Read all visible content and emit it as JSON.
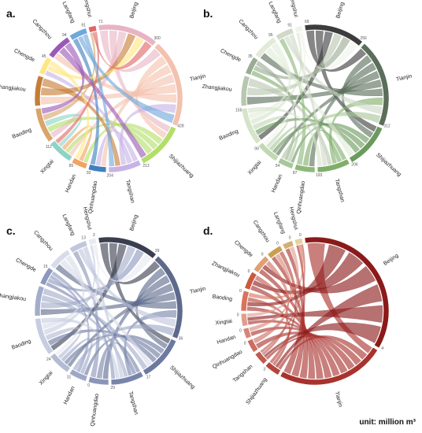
{
  "unit_label": "unit: million m³",
  "panels": [
    {
      "label": "a.",
      "palette": [
        "#e8b4c4",
        "#f3c1ad",
        "#b3de69",
        "#c7b3e6",
        "#3f7fbf",
        "#f2a35f",
        "#8dd3c7",
        "#d9a56b",
        "#c77d35",
        "#ffe680",
        "#9b59b6",
        "#6fa8dc",
        "#e06666",
        "#76c893",
        "#ffcc66"
      ],
      "nodes": [
        {
          "name": "Beijing",
          "tick": "71",
          "tick2": "300",
          "start": -8,
          "end": 40
        },
        {
          "name": "Tianjin",
          "tick": "",
          "tick2": "428",
          "start": 42,
          "end": 112
        },
        {
          "name": "Shijiazhuang",
          "tick": "",
          "tick2": "213",
          "start": 114,
          "end": 152
        },
        {
          "name": "Tangshan",
          "tick": "",
          "tick2": "204",
          "start": 154,
          "end": 180
        },
        {
          "name": "Qinhuangdao",
          "tick": "",
          "tick2": "92",
          "start": 182,
          "end": 196
        },
        {
          "name": "Handan",
          "tick": "",
          "tick2": "85",
          "start": 198,
          "end": 210
        },
        {
          "name": "Xingtai",
          "tick": "",
          "tick2": "112",
          "start": 212,
          "end": 232
        },
        {
          "name": "Baoding",
          "tick": "",
          "tick2": "",
          "start": 234,
          "end": 262
        },
        {
          "name": "Zhangjiakou",
          "tick": "",
          "tick2": "",
          "start": 264,
          "end": 288
        },
        {
          "name": "Chengde",
          "tick": "",
          "tick2": "45",
          "start": 290,
          "end": 304
        },
        {
          "name": "Cangzhou",
          "tick": "",
          "tick2": "94",
          "start": 306,
          "end": 326
        },
        {
          "name": "Langfang",
          "tick": "",
          "tick2": "91",
          "start": 328,
          "end": 342
        },
        {
          "name": "Hengshui",
          "tick": "",
          "tick2": "",
          "start": 344,
          "end": 350
        }
      ],
      "flows": [
        [
          0,
          1
        ],
        [
          0,
          2
        ],
        [
          0,
          7
        ],
        [
          1,
          2
        ],
        [
          1,
          4
        ],
        [
          1,
          6
        ],
        [
          1,
          8
        ],
        [
          1,
          10
        ],
        [
          2,
          5
        ],
        [
          2,
          6
        ],
        [
          2,
          7
        ],
        [
          3,
          4
        ],
        [
          3,
          9
        ],
        [
          3,
          1
        ],
        [
          4,
          11
        ],
        [
          5,
          6
        ],
        [
          6,
          7
        ],
        [
          7,
          12
        ],
        [
          8,
          0
        ],
        [
          8,
          3
        ],
        [
          9,
          0
        ],
        [
          9,
          5
        ],
        [
          10,
          2
        ],
        [
          10,
          7
        ],
        [
          11,
          1
        ],
        [
          11,
          3
        ],
        [
          12,
          0
        ],
        [
          12,
          6
        ]
      ]
    },
    {
      "label": "b.",
      "palette": [
        "#3c3c3c",
        "#5a6e5a",
        "#6b9a5e",
        "#7fae6a",
        "#8db87a",
        "#a8c79a",
        "#c2d8b4",
        "#d5e4c9",
        "#b8c7b0",
        "#9aab93",
        "#e1ebd8",
        "#cfd9c7",
        "#f0f4ec"
      ],
      "nodes": [
        {
          "name": "Beijing",
          "tick": "69",
          "tick2": "256",
          "start": -8,
          "end": 40
        },
        {
          "name": "Tianjin",
          "tick": "",
          "tick2": "312",
          "start": 42,
          "end": 112
        },
        {
          "name": "Shijiazhuang",
          "tick": "",
          "tick2": "206",
          "start": 114,
          "end": 150
        },
        {
          "name": "Tangshan",
          "tick": "",
          "tick2": "193",
          "start": 152,
          "end": 178
        },
        {
          "name": "Qinhuangdao",
          "tick": "",
          "tick2": "87",
          "start": 180,
          "end": 196
        },
        {
          "name": "Handan",
          "tick": "",
          "tick2": "54",
          "start": 198,
          "end": 210
        },
        {
          "name": "Xingtai",
          "tick": "",
          "tick2": "99",
          "start": 212,
          "end": 230
        },
        {
          "name": "Baoding",
          "tick": "",
          "tick2": "155",
          "start": 232,
          "end": 262
        },
        {
          "name": "Zhangjiakou",
          "tick": "",
          "tick2": "",
          "start": 264,
          "end": 288
        },
        {
          "name": "Chengde",
          "tick": "",
          "tick2": "35",
          "start": 290,
          "end": 304
        },
        {
          "name": "Cangzhou",
          "tick": "",
          "tick2": "95",
          "start": 306,
          "end": 326
        },
        {
          "name": "Langfang",
          "tick": "",
          "tick2": "91",
          "start": 328,
          "end": 342
        },
        {
          "name": "Hengshui",
          "tick": "",
          "tick2": "",
          "start": 344,
          "end": 350
        }
      ],
      "flows": [
        [
          0,
          1
        ],
        [
          0,
          2
        ],
        [
          0,
          7
        ],
        [
          1,
          2
        ],
        [
          1,
          4
        ],
        [
          1,
          6
        ],
        [
          1,
          8
        ],
        [
          1,
          10
        ],
        [
          2,
          5
        ],
        [
          2,
          6
        ],
        [
          2,
          7
        ],
        [
          3,
          4
        ],
        [
          3,
          9
        ],
        [
          3,
          1
        ],
        [
          4,
          11
        ],
        [
          5,
          6
        ],
        [
          6,
          7
        ],
        [
          7,
          12
        ],
        [
          8,
          0
        ],
        [
          8,
          3
        ],
        [
          9,
          0
        ],
        [
          9,
          5
        ],
        [
          10,
          2
        ],
        [
          10,
          7
        ],
        [
          11,
          1
        ],
        [
          11,
          3
        ],
        [
          12,
          0
        ],
        [
          12,
          6
        ],
        [
          7,
          3
        ],
        [
          5,
          1
        ]
      ]
    },
    {
      "label": "c.",
      "palette": [
        "#3a3f4f",
        "#5d6a8c",
        "#6c79a0",
        "#7885ab",
        "#8a95b8",
        "#9ea8c6",
        "#b3bbd3",
        "#c6cde0",
        "#a3adca",
        "#8c98bd",
        "#d8dcea",
        "#c0c7dd",
        "#e8eaf2"
      ],
      "nodes": [
        {
          "name": "Beijing",
          "tick": "",
          "tick2": "29",
          "start": -8,
          "end": 40
        },
        {
          "name": "Tianjin",
          "tick": "",
          "tick2": "36",
          "start": 42,
          "end": 112
        },
        {
          "name": "Shijiazhuang",
          "tick": "",
          "tick2": "17",
          "start": 114,
          "end": 150
        },
        {
          "name": "Tangshan",
          "tick": "",
          "tick2": "29",
          "start": 152,
          "end": 178
        },
        {
          "name": "Qinhuangdao",
          "tick": "",
          "tick2": "0",
          "start": 180,
          "end": 196
        },
        {
          "name": "Handan",
          "tick": "",
          "tick2": "31",
          "start": 198,
          "end": 212
        },
        {
          "name": "Xingtai",
          "tick": "",
          "tick2": "24",
          "start": 214,
          "end": 232
        },
        {
          "name": "Baoding",
          "tick": "",
          "tick2": "",
          "start": 234,
          "end": 264
        },
        {
          "name": "Zhangjiakou",
          "tick": "",
          "tick2": "",
          "start": 266,
          "end": 290
        },
        {
          "name": "Chengde",
          "tick": "",
          "tick2": "15",
          "start": 292,
          "end": 306
        },
        {
          "name": "Cangzhou",
          "tick": "",
          "tick2": "",
          "start": 308,
          "end": 326
        },
        {
          "name": "Langfang",
          "tick": "",
          "tick2": "13",
          "start": 328,
          "end": 342
        },
        {
          "name": "Hengshui",
          "tick": "",
          "tick2": "3",
          "start": 344,
          "end": 350
        }
      ],
      "flows": [
        [
          0,
          1
        ],
        [
          0,
          2
        ],
        [
          0,
          7
        ],
        [
          1,
          2
        ],
        [
          1,
          4
        ],
        [
          1,
          6
        ],
        [
          1,
          8
        ],
        [
          1,
          10
        ],
        [
          2,
          5
        ],
        [
          2,
          6
        ],
        [
          2,
          7
        ],
        [
          3,
          4
        ],
        [
          3,
          9
        ],
        [
          3,
          1
        ],
        [
          4,
          11
        ],
        [
          5,
          6
        ],
        [
          6,
          7
        ],
        [
          7,
          12
        ],
        [
          8,
          0
        ],
        [
          8,
          3
        ],
        [
          9,
          0
        ],
        [
          9,
          5
        ],
        [
          10,
          2
        ],
        [
          10,
          7
        ],
        [
          11,
          1
        ],
        [
          11,
          3
        ],
        [
          12,
          0
        ],
        [
          12,
          6
        ],
        [
          7,
          3
        ],
        [
          5,
          1
        ],
        [
          8,
          2
        ],
        [
          9,
          3
        ]
      ]
    },
    {
      "label": "d.",
      "palette": [
        "#8b1a1a",
        "#a8322d",
        "#b5453c",
        "#c0594e",
        "#cc6d61",
        "#d88476",
        "#e29c8e",
        "#d9735c",
        "#c85b3f",
        "#e0a070",
        "#c8a050",
        "#d4b070",
        "#e8d0a0"
      ],
      "nodes": [
        {
          "name": "Beijing",
          "tick": "",
          "tick2": "4",
          "start": -8,
          "end": 120
        },
        {
          "name": "Tianjin",
          "tick": "",
          "tick2": "",
          "start": 122,
          "end": 208
        },
        {
          "name": "Shijiazhuang",
          "tick": "",
          "tick2": "3",
          "start": 210,
          "end": 222
        },
        {
          "name": "Tangshan",
          "tick": "",
          "tick2": "",
          "start": 224,
          "end": 234
        },
        {
          "name": "Qinhuangdao",
          "tick": "",
          "tick2": "0",
          "start": 236,
          "end": 246
        },
        {
          "name": "Handan",
          "tick": "",
          "tick2": "0",
          "start": 248,
          "end": 256
        },
        {
          "name": "Xingtai",
          "tick": "",
          "tick2": "0",
          "start": 258,
          "end": 268
        },
        {
          "name": "Baoding",
          "tick": "",
          "tick2": "0",
          "start": 270,
          "end": 286
        },
        {
          "name": "Zhangjiakou",
          "tick": "",
          "tick2": "0",
          "start": 288,
          "end": 302
        },
        {
          "name": "Chengde",
          "tick": "",
          "tick2": "0",
          "start": 304,
          "end": 318
        },
        {
          "name": "Cangzhou",
          "tick": "",
          "tick2": "0",
          "start": 320,
          "end": 332
        },
        {
          "name": "Langfang",
          "tick": "",
          "tick2": "0",
          "start": 334,
          "end": 342
        },
        {
          "name": "Hengshui",
          "tick": "",
          "tick2": "0",
          "start": 344,
          "end": 350
        }
      ],
      "flows": [
        [
          1,
          0
        ],
        [
          1,
          2
        ],
        [
          1,
          3
        ],
        [
          1,
          4
        ],
        [
          1,
          5
        ],
        [
          1,
          6
        ],
        [
          1,
          7
        ],
        [
          1,
          8
        ],
        [
          1,
          9
        ],
        [
          1,
          10
        ],
        [
          1,
          11
        ],
        [
          1,
          12
        ],
        [
          0,
          7
        ],
        [
          0,
          8
        ],
        [
          0,
          9
        ],
        [
          0,
          2
        ],
        [
          0,
          6
        ],
        [
          0,
          3
        ],
        [
          2,
          7
        ],
        [
          3,
          8
        ],
        [
          4,
          9
        ],
        [
          5,
          10
        ],
        [
          6,
          11
        ],
        [
          7,
          12
        ],
        [
          2,
          10
        ],
        [
          3,
          12
        ]
      ]
    }
  ]
}
